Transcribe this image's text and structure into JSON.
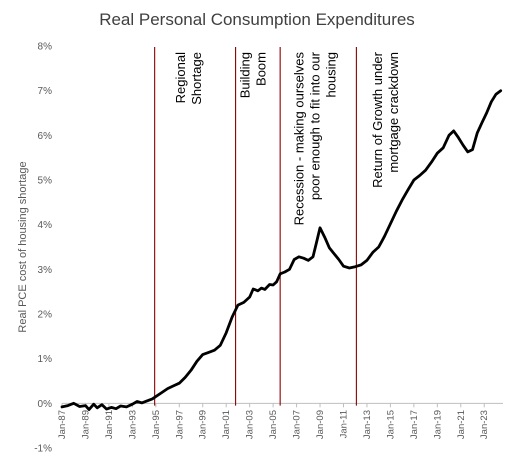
{
  "chart_data": {
    "type": "line",
    "title": "Real Personal Consumption Expenditures",
    "ylabel": "Real PCE cost of housing shortage",
    "xlabel": "",
    "ylim": [
      -1,
      8
    ],
    "y_ticks": [
      {
        "value": -1,
        "label": "-1%"
      },
      {
        "value": 0,
        "label": "0%"
      },
      {
        "value": 1,
        "label": "1%"
      },
      {
        "value": 2,
        "label": "2%"
      },
      {
        "value": 3,
        "label": "3%"
      },
      {
        "value": 4,
        "label": "4%"
      },
      {
        "value": 5,
        "label": "5%"
      },
      {
        "value": 6,
        "label": "6%"
      },
      {
        "value": 7,
        "label": "7%"
      },
      {
        "value": 8,
        "label": "8%"
      }
    ],
    "xlim": [
      1987.0,
      2024.6
    ],
    "x_ticks": [
      {
        "value": 1987,
        "label": "Jan-87"
      },
      {
        "value": 1989,
        "label": "Jan-89"
      },
      {
        "value": 1991,
        "label": "Jan-91"
      },
      {
        "value": 1993,
        "label": "Jan-93"
      },
      {
        "value": 1995,
        "label": "Jan-95"
      },
      {
        "value": 1997,
        "label": "Jan-97"
      },
      {
        "value": 1999,
        "label": "Jan-99"
      },
      {
        "value": 2001,
        "label": "Jan-01"
      },
      {
        "value": 2003,
        "label": "Jan-03"
      },
      {
        "value": 2005,
        "label": "Jan-05"
      },
      {
        "value": 2007,
        "label": "Jan-07"
      },
      {
        "value": 2009,
        "label": "Jan-09"
      },
      {
        "value": 2011,
        "label": "Jan-11"
      },
      {
        "value": 2013,
        "label": "Jan-13"
      },
      {
        "value": 2015,
        "label": "Jan-15"
      },
      {
        "value": 2017,
        "label": "Jan-17"
      },
      {
        "value": 2019,
        "label": "Jan-19"
      },
      {
        "value": 2021,
        "label": "Jan-21"
      },
      {
        "value": 2023,
        "label": "Jan-23"
      }
    ],
    "grid": false,
    "line_color": "#000000",
    "marker_line_color": "#8b0000",
    "series": [
      {
        "points": [
          [
            1987.0,
            -0.08
          ],
          [
            1987.5,
            -0.05
          ],
          [
            1988.0,
            0.0
          ],
          [
            1988.5,
            -0.07
          ],
          [
            1989.0,
            -0.05
          ],
          [
            1989.3,
            -0.14
          ],
          [
            1989.7,
            -0.02
          ],
          [
            1990.0,
            -0.1
          ],
          [
            1990.4,
            -0.03
          ],
          [
            1990.8,
            -0.13
          ],
          [
            1991.2,
            -0.09
          ],
          [
            1991.6,
            -0.12
          ],
          [
            1992.0,
            -0.06
          ],
          [
            1992.5,
            -0.08
          ],
          [
            1993.0,
            -0.02
          ],
          [
            1993.4,
            0.04
          ],
          [
            1993.8,
            0.01
          ],
          [
            1994.3,
            0.06
          ],
          [
            1994.7,
            0.1
          ],
          [
            1995.0,
            0.15
          ],
          [
            1995.5,
            0.24
          ],
          [
            1996.0,
            0.33
          ],
          [
            1996.5,
            0.39
          ],
          [
            1997.0,
            0.45
          ],
          [
            1997.5,
            0.58
          ],
          [
            1998.0,
            0.74
          ],
          [
            1998.5,
            0.94
          ],
          [
            1999.0,
            1.09
          ],
          [
            1999.5,
            1.14
          ],
          [
            2000.0,
            1.19
          ],
          [
            2000.5,
            1.3
          ],
          [
            2001.0,
            1.58
          ],
          [
            2001.5,
            1.93
          ],
          [
            2002.0,
            2.2
          ],
          [
            2002.5,
            2.26
          ],
          [
            2003.0,
            2.38
          ],
          [
            2003.3,
            2.56
          ],
          [
            2003.7,
            2.52
          ],
          [
            2004.0,
            2.58
          ],
          [
            2004.3,
            2.55
          ],
          [
            2004.7,
            2.66
          ],
          [
            2005.0,
            2.65
          ],
          [
            2005.3,
            2.72
          ],
          [
            2005.6,
            2.9
          ],
          [
            2006.0,
            2.94
          ],
          [
            2006.4,
            3.0
          ],
          [
            2006.8,
            3.22
          ],
          [
            2007.2,
            3.28
          ],
          [
            2007.6,
            3.25
          ],
          [
            2008.0,
            3.2
          ],
          [
            2008.4,
            3.28
          ],
          [
            2008.7,
            3.6
          ],
          [
            2009.0,
            3.93
          ],
          [
            2009.4,
            3.72
          ],
          [
            2009.8,
            3.48
          ],
          [
            2010.2,
            3.35
          ],
          [
            2010.6,
            3.22
          ],
          [
            2011.0,
            3.07
          ],
          [
            2011.5,
            3.03
          ],
          [
            2012.0,
            3.06
          ],
          [
            2012.5,
            3.1
          ],
          [
            2013.0,
            3.2
          ],
          [
            2013.5,
            3.38
          ],
          [
            2014.0,
            3.5
          ],
          [
            2014.5,
            3.74
          ],
          [
            2015.0,
            4.02
          ],
          [
            2015.5,
            4.3
          ],
          [
            2016.0,
            4.55
          ],
          [
            2016.5,
            4.78
          ],
          [
            2017.0,
            5.0
          ],
          [
            2017.5,
            5.1
          ],
          [
            2018.0,
            5.22
          ],
          [
            2018.5,
            5.4
          ],
          [
            2019.0,
            5.6
          ],
          [
            2019.5,
            5.72
          ],
          [
            2020.0,
            6.0
          ],
          [
            2020.4,
            6.1
          ],
          [
            2020.8,
            5.95
          ],
          [
            2021.2,
            5.78
          ],
          [
            2021.6,
            5.63
          ],
          [
            2022.0,
            5.68
          ],
          [
            2022.4,
            6.05
          ],
          [
            2022.8,
            6.28
          ],
          [
            2023.2,
            6.5
          ],
          [
            2023.6,
            6.75
          ],
          [
            2024.0,
            6.92
          ],
          [
            2024.4,
            7.0
          ]
        ]
      }
    ],
    "vertical_lines": [
      1994.9,
      2001.8,
      2005.6,
      2012.1
    ],
    "annotations": [
      {
        "x": 1997.5,
        "lines": [
          "Regional",
          "Shortage"
        ]
      },
      {
        "x": 2003.0,
        "lines": [
          "Building",
          "Boom"
        ]
      },
      {
        "x": 2007.6,
        "lines": [
          "Recession - making ourselves",
          "poor enough to fit into our",
          "housing"
        ]
      },
      {
        "x": 2014.3,
        "lines": [
          "Return of Growth under",
          "mortgage crackdown"
        ]
      }
    ]
  }
}
